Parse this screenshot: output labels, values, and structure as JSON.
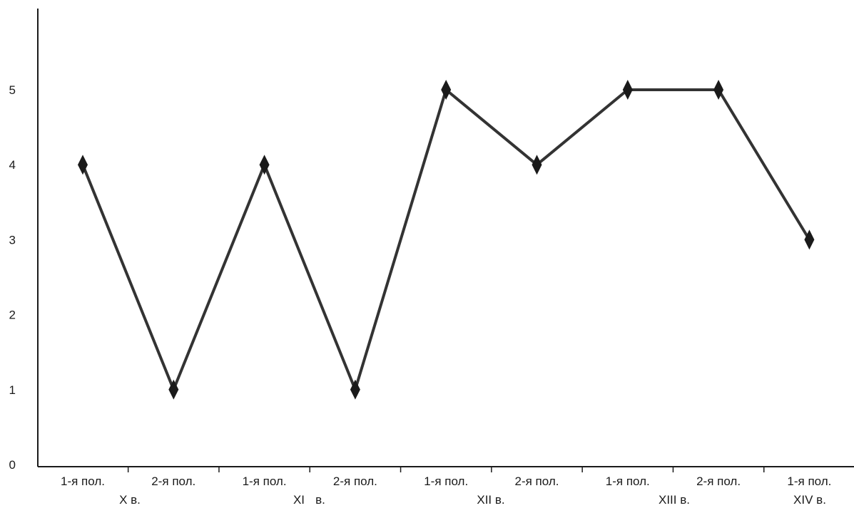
{
  "chart_data": {
    "type": "line",
    "title": "",
    "xlabel": "",
    "ylabel": "",
    "categories": [
      "1-я пол.",
      "2-я пол.",
      "1-я пол.",
      "2-я пол.",
      "1-я пол.",
      "2-я пол.",
      "1-я пол.",
      "2-я пол.",
      "1-я пол."
    ],
    "centuries": [
      "X в.",
      "XI",
      "в.",
      "XII в.",
      "XIII в.",
      "XIV в."
    ],
    "series": [
      {
        "values": [
          4,
          1,
          4,
          1,
          5,
          4,
          5,
          5,
          3
        ]
      }
    ],
    "ylim": [
      0,
      6
    ],
    "yticks": [
      "0",
      "1",
      "2",
      "3",
      "4",
      "5"
    ],
    "grid": false,
    "marker": "diamond",
    "line_color": "#333333",
    "marker_color": "#1a1a1a"
  }
}
